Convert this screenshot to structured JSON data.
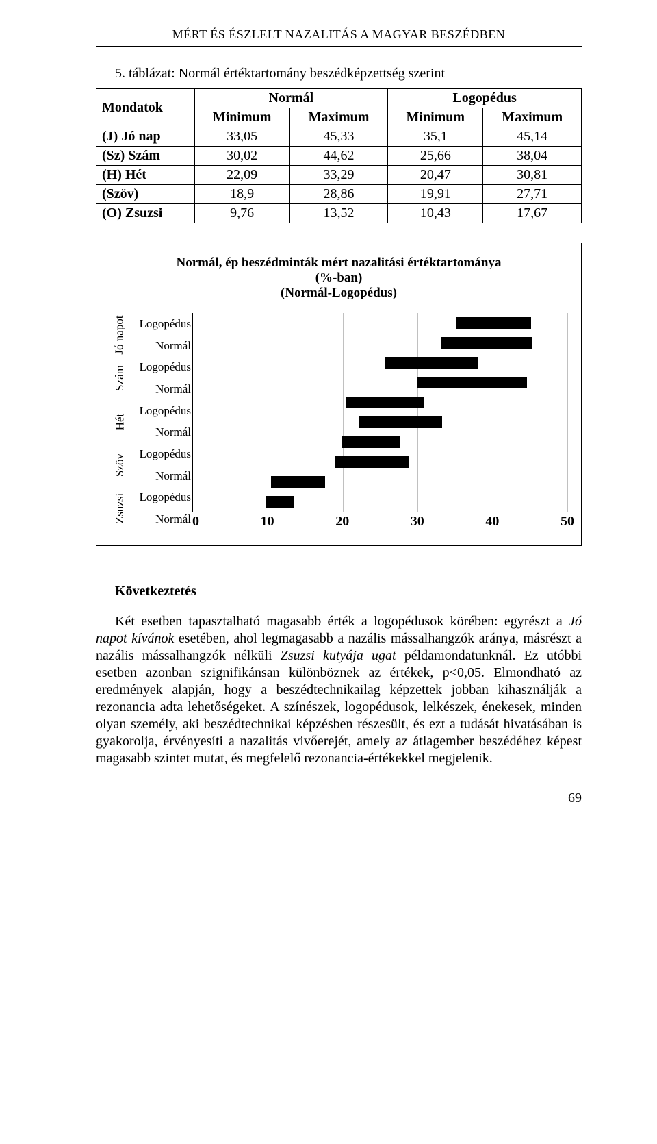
{
  "running_head": "MÉRT ÉS ÉSZLELT NAZALITÁS A MAGYAR BESZÉDBEN",
  "table_caption": "5. táblázat: Normál értéktartomány beszédképzettség szerint",
  "table": {
    "top_headers": [
      "Normál",
      "Logopédus"
    ],
    "sub_headers": [
      "Mondatok",
      "Minimum",
      "Maximum",
      "Minimum",
      "Maximum"
    ],
    "rows": [
      {
        "label": "(J) Jó nap",
        "cells": [
          "33,05",
          "45,33",
          "35,1",
          "45,14"
        ]
      },
      {
        "label": "(Sz) Szám",
        "cells": [
          "30,02",
          "44,62",
          "25,66",
          "38,04"
        ]
      },
      {
        "label": "(H) Hét",
        "cells": [
          "22,09",
          "33,29",
          "20,47",
          "30,81"
        ]
      },
      {
        "label": "(Szöv)",
        "cells": [
          "18,9",
          "28,86",
          "19,91",
          "27,71"
        ]
      },
      {
        "label": "(O) Zsuzsi",
        "cells": [
          "9,76",
          "13,52",
          "10,43",
          "17,67"
        ]
      }
    ]
  },
  "chart": {
    "type": "range-bar",
    "title_line1": "Normál, ép beszédminták mért nazalitási értéktartománya",
    "title_line2": "(%-ban)",
    "title_line3": "(Normál-Logopédus)",
    "xlim": [
      0,
      50
    ],
    "xtick_step": 10,
    "xticks": [
      "0",
      "10",
      "20",
      "30",
      "40",
      "50"
    ],
    "grid_color": "#c0c0c0",
    "bar_color": "#000000",
    "background_color": "#ffffff",
    "label_fontsize": 17,
    "tick_fontsize": 20,
    "y_categories": [
      {
        "label": "Jó\nnapot",
        "sub": [
          {
            "label": "Logopédus",
            "start": 35.1,
            "end": 45.14
          },
          {
            "label": "Normál",
            "start": 33.05,
            "end": 45.33
          }
        ]
      },
      {
        "label": "Szám",
        "sub": [
          {
            "label": "Logopédus",
            "start": 25.66,
            "end": 38.04
          },
          {
            "label": "Normál",
            "start": 30.02,
            "end": 44.62
          }
        ]
      },
      {
        "label": "Hét",
        "sub": [
          {
            "label": "Logopédus",
            "start": 20.47,
            "end": 30.81
          },
          {
            "label": "Normál",
            "start": 22.09,
            "end": 33.29
          }
        ]
      },
      {
        "label": "Szöv",
        "sub": [
          {
            "label": "Logopédus",
            "start": 19.91,
            "end": 27.71
          },
          {
            "label": "Normál",
            "start": 18.9,
            "end": 28.86
          }
        ]
      },
      {
        "label": "Zsuzsi",
        "sub": [
          {
            "label": "Logopédus",
            "start": 10.43,
            "end": 17.67
          },
          {
            "label": "Normál",
            "start": 9.76,
            "end": 13.52
          }
        ]
      }
    ]
  },
  "section_heading": "Következtetés",
  "body_text": {
    "pre": "Két esetben tapasztalható magasabb érték a logopédusok körében: egyrészt a ",
    "ital1": "Jó napot kívánok",
    "mid1": " esetében, ahol legmagasabb a nazális mássalhangzók aránya, másrészt a nazális mássalhangzók nélküli ",
    "ital2": "Zsuzsi kutyája ugat",
    "post": " példamondatunknál. Ez utóbbi esetben azonban szignifikánsan különböznek az értékek, p<0,05. Elmondható az eredmények alapján, hogy a beszédtechnikailag képzettek jobban kihasználják a rezonancia adta lehetőségeket. A színészek, logopédusok, lelkészek, énekesek, minden olyan személy, aki beszédtechnikai képzésben részesült, és ezt a tudását hivatásában is gyakorolja, érvényesíti a nazalitás vivőerejét, amely az átlagember beszédéhez képest magasabb szintet mutat, és megfelelő rezonancia-értékekkel megjelenik."
  },
  "page_number": "69"
}
